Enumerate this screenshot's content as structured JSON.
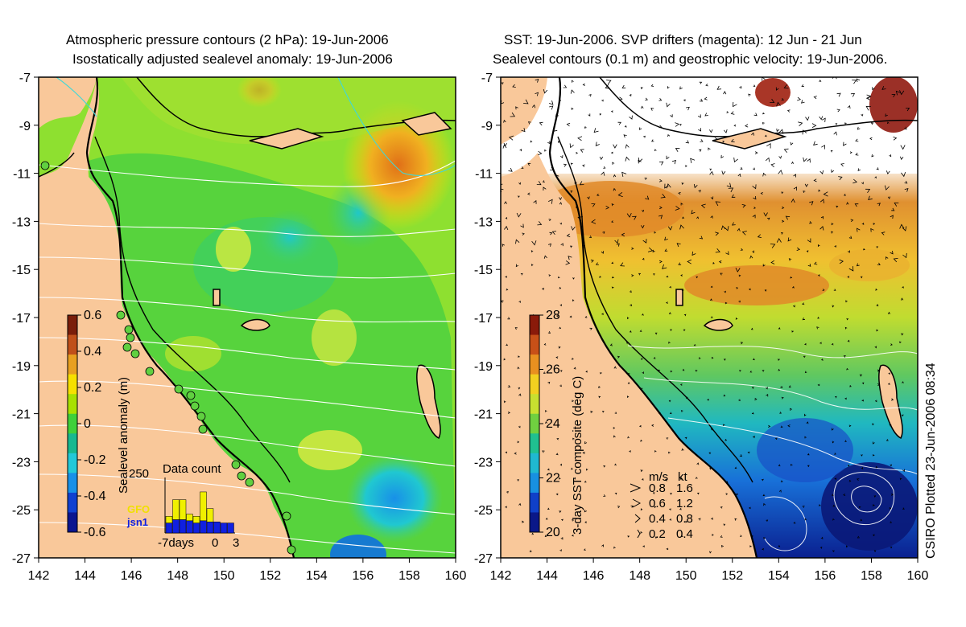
{
  "left_panel": {
    "title_line1": "Atmospheric pressure contours (2 hPa): 19-Jun-2006",
    "title_line2": "Isostatically adjusted sealevel anomaly: 19-Jun-2006",
    "colorbar": {
      "label": "Sealevel anomaly (m)",
      "ticks": [
        "0.6",
        "0.4",
        "0.2",
        "0",
        "-0.2",
        "-0.4",
        "-0.6"
      ],
      "colors": [
        "#7a1e0a",
        "#c0501a",
        "#e8a020",
        "#f6e000",
        "#a8e000",
        "#3fd03a",
        "#17b890",
        "#22c8d8",
        "#1890e8",
        "#1040d0",
        "#0a1590"
      ]
    },
    "data_count": {
      "label": "Data count",
      "max_label": "250",
      "legend": [
        "GFO",
        "jsn1"
      ],
      "x_labels": [
        "-7days",
        "0",
        "3"
      ],
      "gfo_color": "#f0f000",
      "jsn1_color": "#1020e0",
      "bars": [
        {
          "gfo": 30,
          "jsn1": 45
        },
        {
          "gfo": 90,
          "jsn1": 60
        },
        {
          "gfo": 90,
          "jsn1": 60
        },
        {
          "gfo": 30,
          "jsn1": 55
        },
        {
          "gfo": 30,
          "jsn1": 45
        },
        {
          "gfo": 130,
          "jsn1": 55
        },
        {
          "gfo": 60,
          "jsn1": 50
        },
        {
          "gfo": 0,
          "jsn1": 50
        },
        {
          "gfo": 0,
          "jsn1": 45
        },
        {
          "gfo": 0,
          "jsn1": 45
        }
      ]
    }
  },
  "right_panel": {
    "title_line1": "SST: 19-Jun-2006. SVP drifters (magenta): 12 Jun - 21 Jun",
    "title_line2": "Sealevel contours (0.1 m) and geostrophic velocity: 19-Jun-2006.",
    "colorbar": {
      "label": "3-day SST composite (deg C)",
      "ticks": [
        "28",
        "26",
        "24",
        "22",
        "20"
      ],
      "colors": [
        "#8a1a0a",
        "#c85018",
        "#e89020",
        "#f2d020",
        "#c8e030",
        "#70d040",
        "#20c090",
        "#20b8d0",
        "#1890e0",
        "#1040c8",
        "#0a1888"
      ]
    },
    "velocity_legend": {
      "header_ms": "m/s",
      "header_kt": "kt",
      "rows": [
        {
          "ms": "0.8",
          "kt": "1.6"
        },
        {
          "ms": "0.6",
          "kt": "1.2"
        },
        {
          "ms": "0.4",
          "kt": "0.8"
        },
        {
          "ms": "0.2",
          "kt": "0.4"
        }
      ]
    },
    "credit": "CSIRO Plotted 23-Jun-2006 08:34"
  },
  "axes": {
    "y_ticks": [
      "-7",
      "-9",
      "-11",
      "-13",
      "-15",
      "-17",
      "-19",
      "-21",
      "-23",
      "-25",
      "-27"
    ],
    "x_ticks": [
      "142",
      "144",
      "146",
      "148",
      "150",
      "152",
      "154",
      "156",
      "158",
      "160"
    ]
  },
  "colors": {
    "land": "#f9c89a",
    "sea_base": "#8ee030",
    "coast": "#000000",
    "pressure_contour": "#ffffff"
  }
}
